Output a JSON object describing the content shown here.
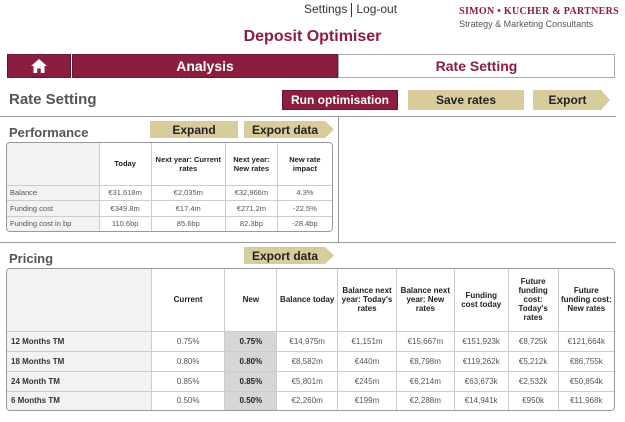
{
  "topnav": {
    "settings": "Settings",
    "logout": "Log-out"
  },
  "brand": {
    "name": "SIMON • KUCHER & PARTNERS",
    "tagline": "Strategy & Marketing Consultants"
  },
  "app_title": "Deposit Optimiser",
  "tabs": {
    "home_icon": "home-icon",
    "analysis": "Analysis",
    "rate_setting": "Rate Setting"
  },
  "page_heading": "Rate Setting",
  "toolbar": {
    "run": "Run optimisation",
    "save": "Save rates",
    "export": "Export"
  },
  "performance": {
    "title": "Performance",
    "expand": "Expand",
    "export_data": "Export data",
    "columns": [
      "Today",
      "Next year: Current rates",
      "Next year: New rates",
      "New rate impact"
    ],
    "rows": [
      {
        "label": "Balance",
        "values": [
          "€31,618m",
          "€2,035m",
          "€32,966m",
          "4.3%"
        ]
      },
      {
        "label": "Funding cost",
        "values": [
          "€349.8m",
          "€17.4m",
          "€271.2m",
          "-22.5%"
        ]
      },
      {
        "label": "Funding cost in bp",
        "values": [
          "110.6bp",
          "85.6bp",
          "82.3bp",
          "-28.4bp"
        ]
      }
    ]
  },
  "pricing": {
    "title": "Pricing",
    "export_data": "Export data",
    "columns": [
      "Current",
      "New",
      "Balance today",
      "Balance next year: Today's rates",
      "Balance next year: New rates",
      "Funding cost today",
      "Future funding cost: Today's rates",
      "Future funding cost: New rates"
    ],
    "rows": [
      {
        "label": "12 Months TM",
        "values": [
          "0.75%",
          "0.75%",
          "€14,975m",
          "€1,151m",
          "€15,667m",
          "€151,923k",
          "€8,725k",
          "€121,664k"
        ]
      },
      {
        "label": "18 Months TM",
        "values": [
          "0.80%",
          "0.80%",
          "€8,582m",
          "€440m",
          "€8,798m",
          "€119,262k",
          "€5,212k",
          "€86,755k"
        ]
      },
      {
        "label": "24 Month TM",
        "values": [
          "0.85%",
          "0.85%",
          "€5,801m",
          "€245m",
          "€6,214m",
          "€63,673k",
          "€2,532k",
          "€50,854k"
        ]
      },
      {
        "label": "6 Months TM",
        "values": [
          "0.50%",
          "0.50%",
          "€2,260m",
          "€199m",
          "€2,288m",
          "€14,941k",
          "€950k",
          "€11,968k"
        ]
      }
    ]
  }
}
